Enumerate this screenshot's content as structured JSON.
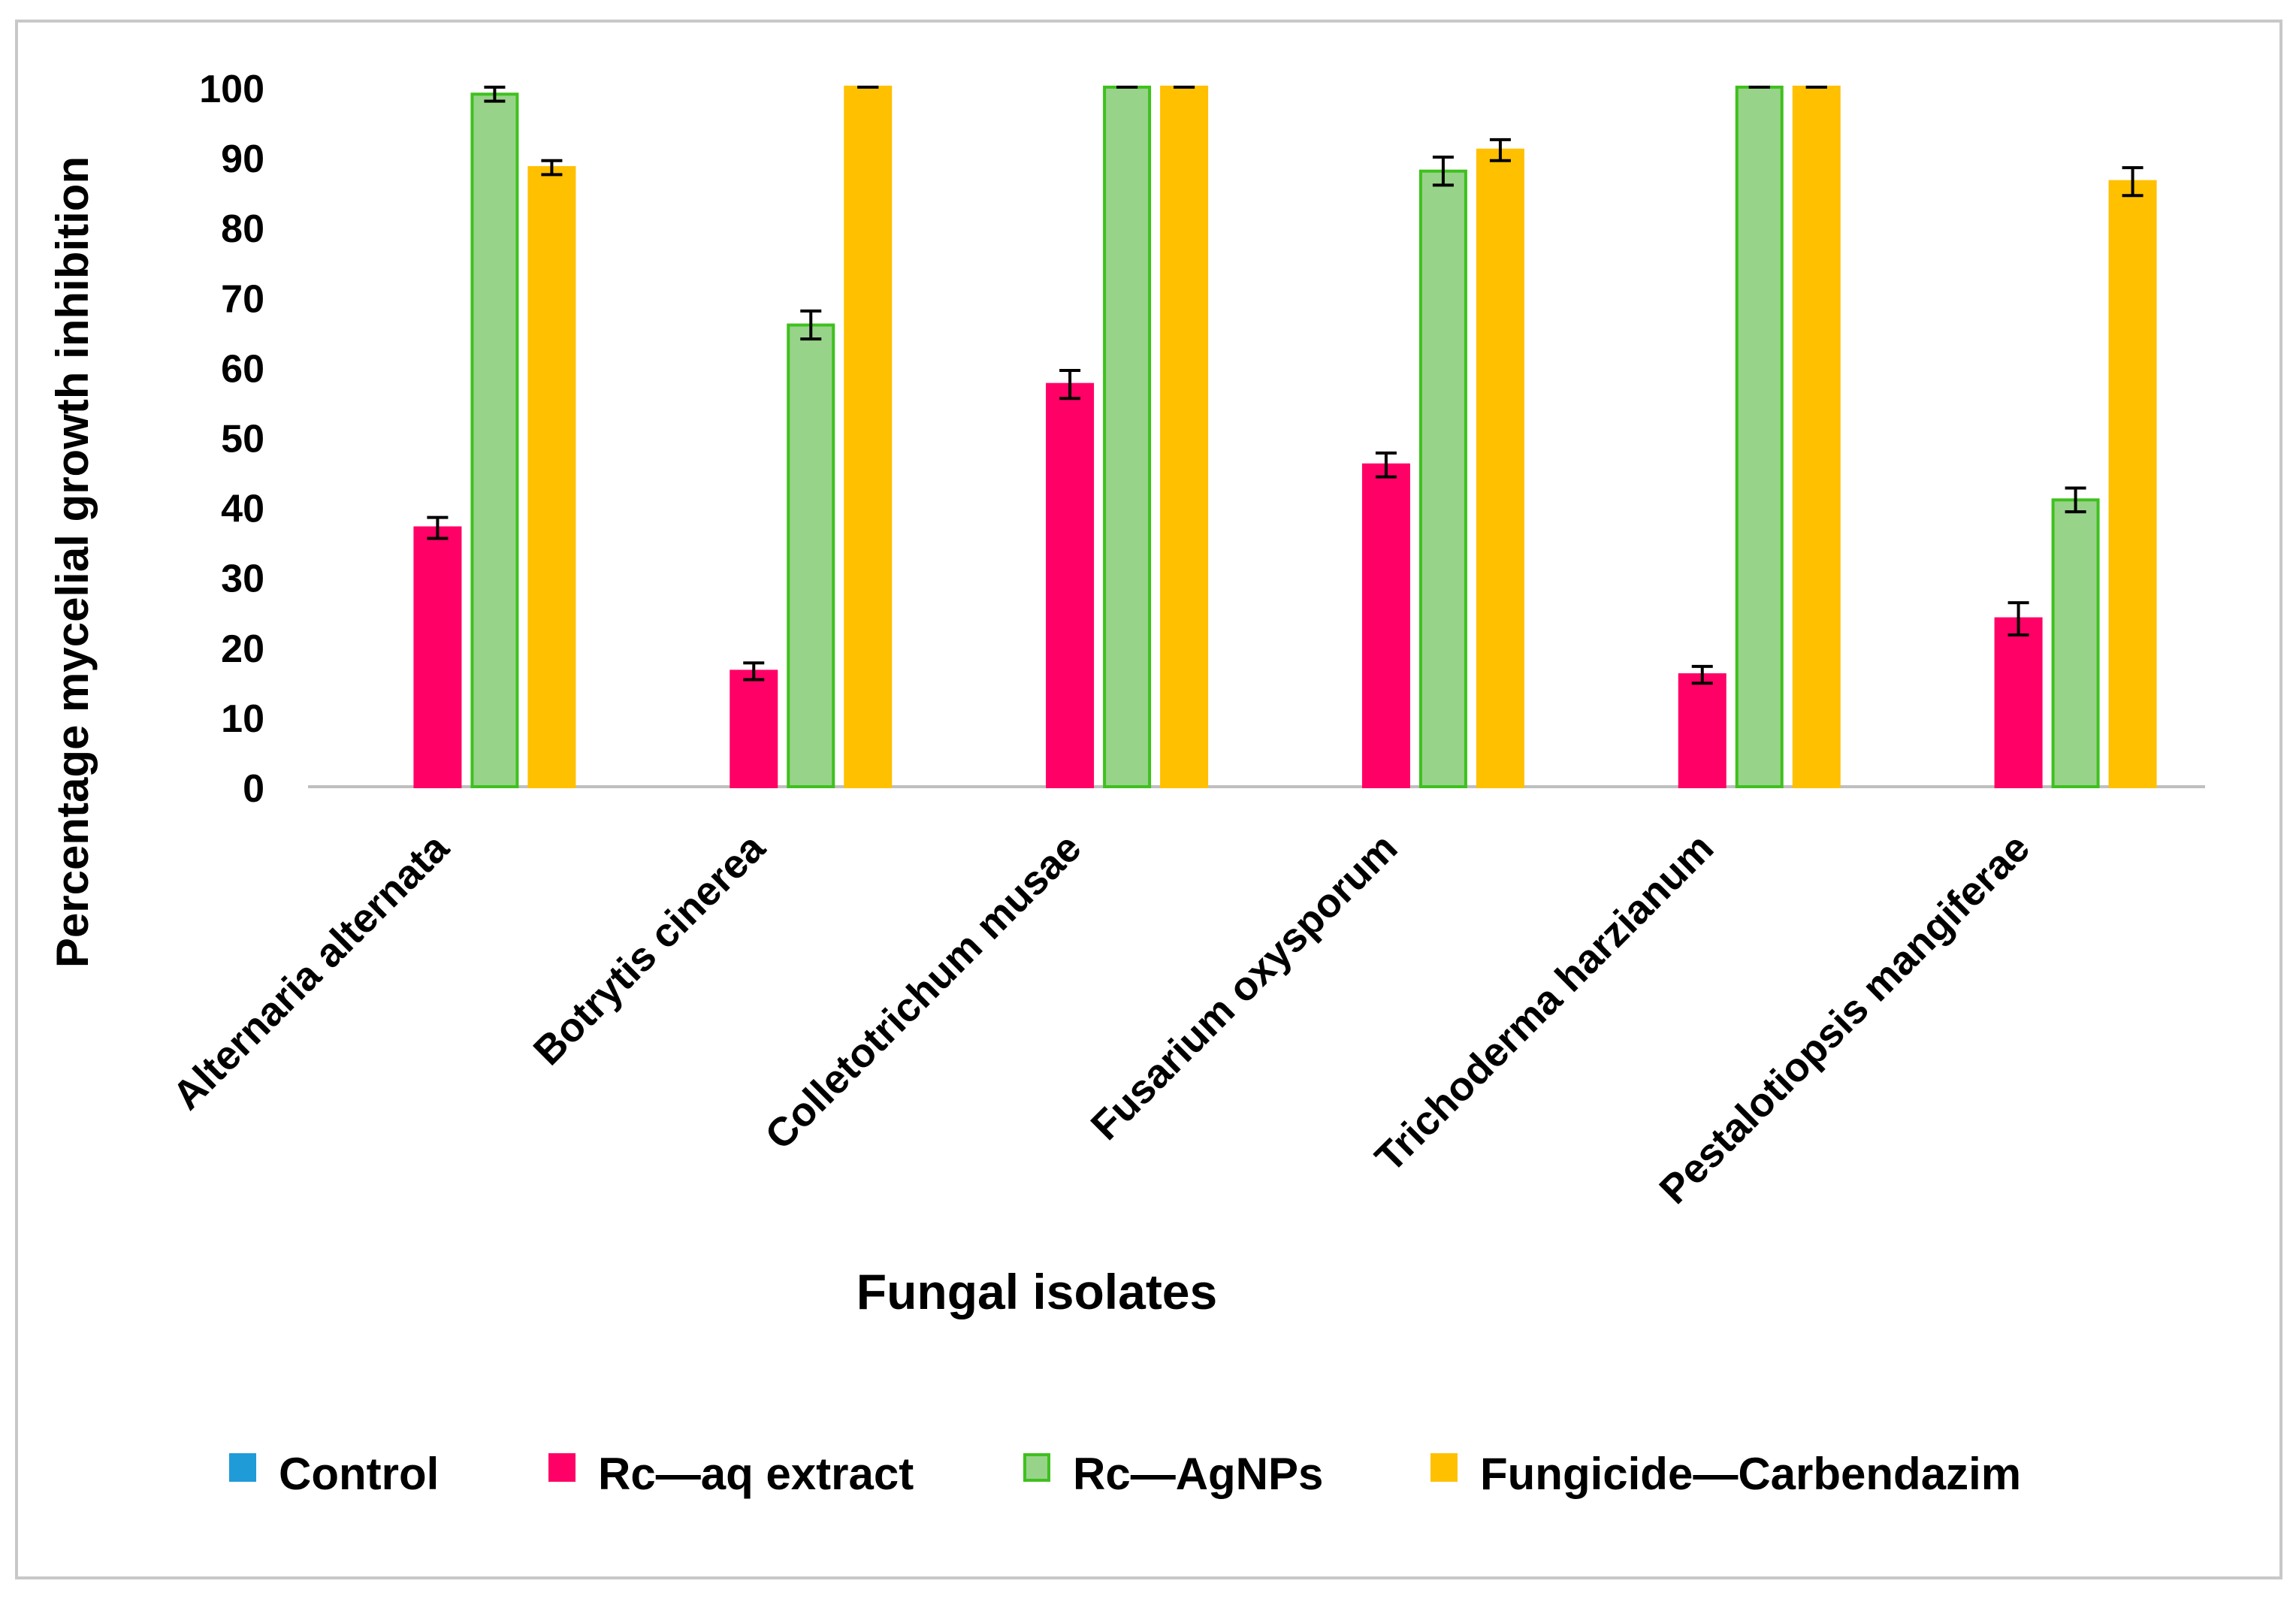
{
  "chart_data": {
    "type": "bar",
    "title": "",
    "xlabel": "Fungal isolates",
    "ylabel": "Percentage  mycelial growth inhibition",
    "ylim": [
      0,
      100
    ],
    "yticks": [
      0,
      10,
      20,
      30,
      40,
      50,
      60,
      70,
      80,
      90,
      100
    ],
    "grid": false,
    "legend_position": "bottom",
    "categories": [
      "Alternaria alternata",
      "Botrytis cinerea",
      "Colletotrichum musae",
      "Fusarium oxysporum",
      "Trichoderma harzianum",
      "Pestalotiopsis mangiferae"
    ],
    "series": [
      {
        "name": "Control",
        "color": "#1F9BD7",
        "border": "#1F9BD7",
        "values": [
          0,
          0,
          0,
          0,
          0,
          0
        ],
        "errors": [
          0,
          0,
          0,
          0,
          0,
          0
        ]
      },
      {
        "name": "Rc—aq extract",
        "color": "#FF0066",
        "border": "#FF0066",
        "values": [
          37,
          16.5,
          57.5,
          46,
          16,
          24
        ],
        "errors": [
          1.5,
          1.2,
          2,
          1.7,
          1.2,
          2.3
        ]
      },
      {
        "name": "Rc—AgNPs",
        "color": "#98D38A",
        "border": "#3FC01E",
        "values": [
          99,
          66,
          100,
          88,
          100,
          41
        ],
        "errors": [
          1,
          2,
          0,
          2,
          0,
          1.7
        ]
      },
      {
        "name": "Fungicide—Carbendazim",
        "color": "#FFC000",
        "border": "#FFC000",
        "values": [
          88.5,
          100,
          100,
          91,
          100,
          86.5
        ],
        "errors": [
          1,
          0,
          0,
          1.5,
          0,
          2
        ]
      }
    ]
  }
}
